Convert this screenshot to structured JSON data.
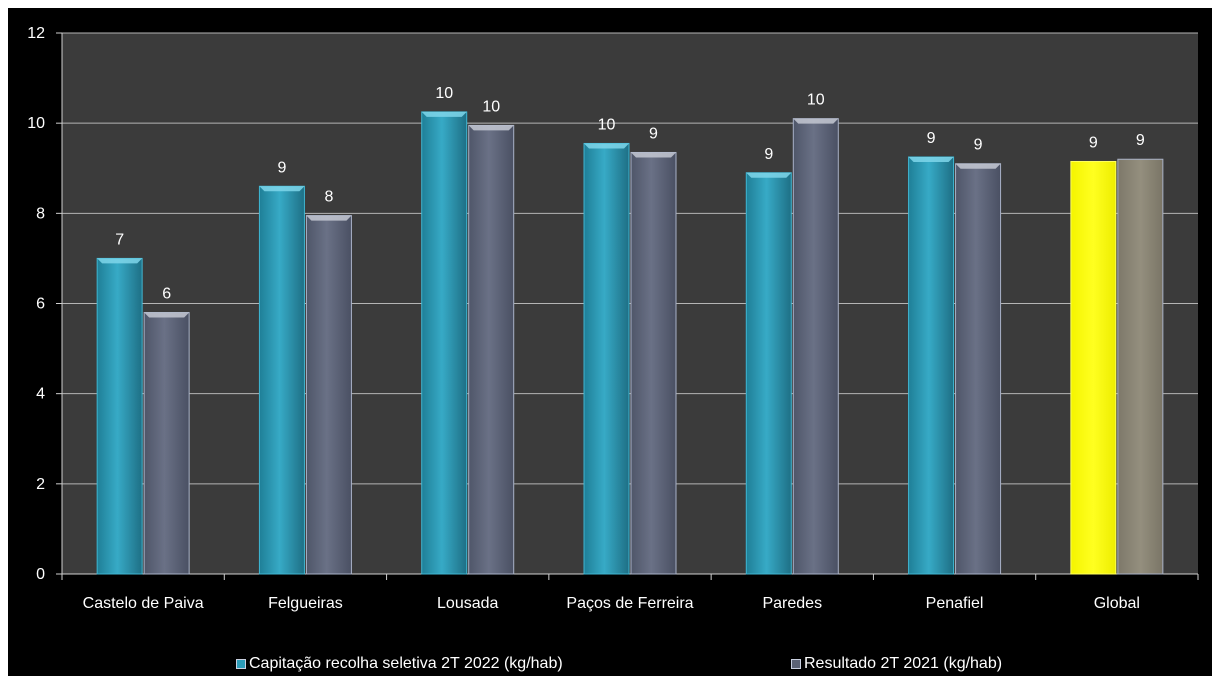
{
  "chart_data": {
    "type": "bar",
    "categories": [
      "Castelo de Paiva",
      "Felgueiras",
      "Lousada",
      "Paços de Ferreira",
      "Paredes",
      "Penafiel",
      "Global"
    ],
    "series": [
      {
        "name": "Capitação recolha seletiva 2T 2022 (kg/hab)",
        "values": [
          7.0,
          8.6,
          10.25,
          9.55,
          8.9,
          9.25,
          9.15
        ],
        "labels": [
          "7",
          "9",
          "10",
          "10",
          "9",
          "9",
          "9"
        ],
        "color": "#2b9bb7",
        "highlight_color": "#ffff00"
      },
      {
        "name": "Resultado 2T 2021 (kg/hab)",
        "values": [
          5.8,
          7.95,
          9.95,
          9.35,
          10.1,
          9.1,
          9.2
        ],
        "labels": [
          "6",
          "8",
          "10",
          "9",
          "10",
          "9",
          "9"
        ],
        "color": "#5b6275",
        "highlight_color": "#898471"
      }
    ],
    "highlight_category": "Global",
    "yticks": [
      "0",
      "2",
      "4",
      "6",
      "8",
      "10",
      "12"
    ],
    "ylim": [
      0,
      12
    ],
    "grid": true,
    "legend_position": "bottom",
    "background": "#000000",
    "plot_background": "#3b3b3b"
  }
}
